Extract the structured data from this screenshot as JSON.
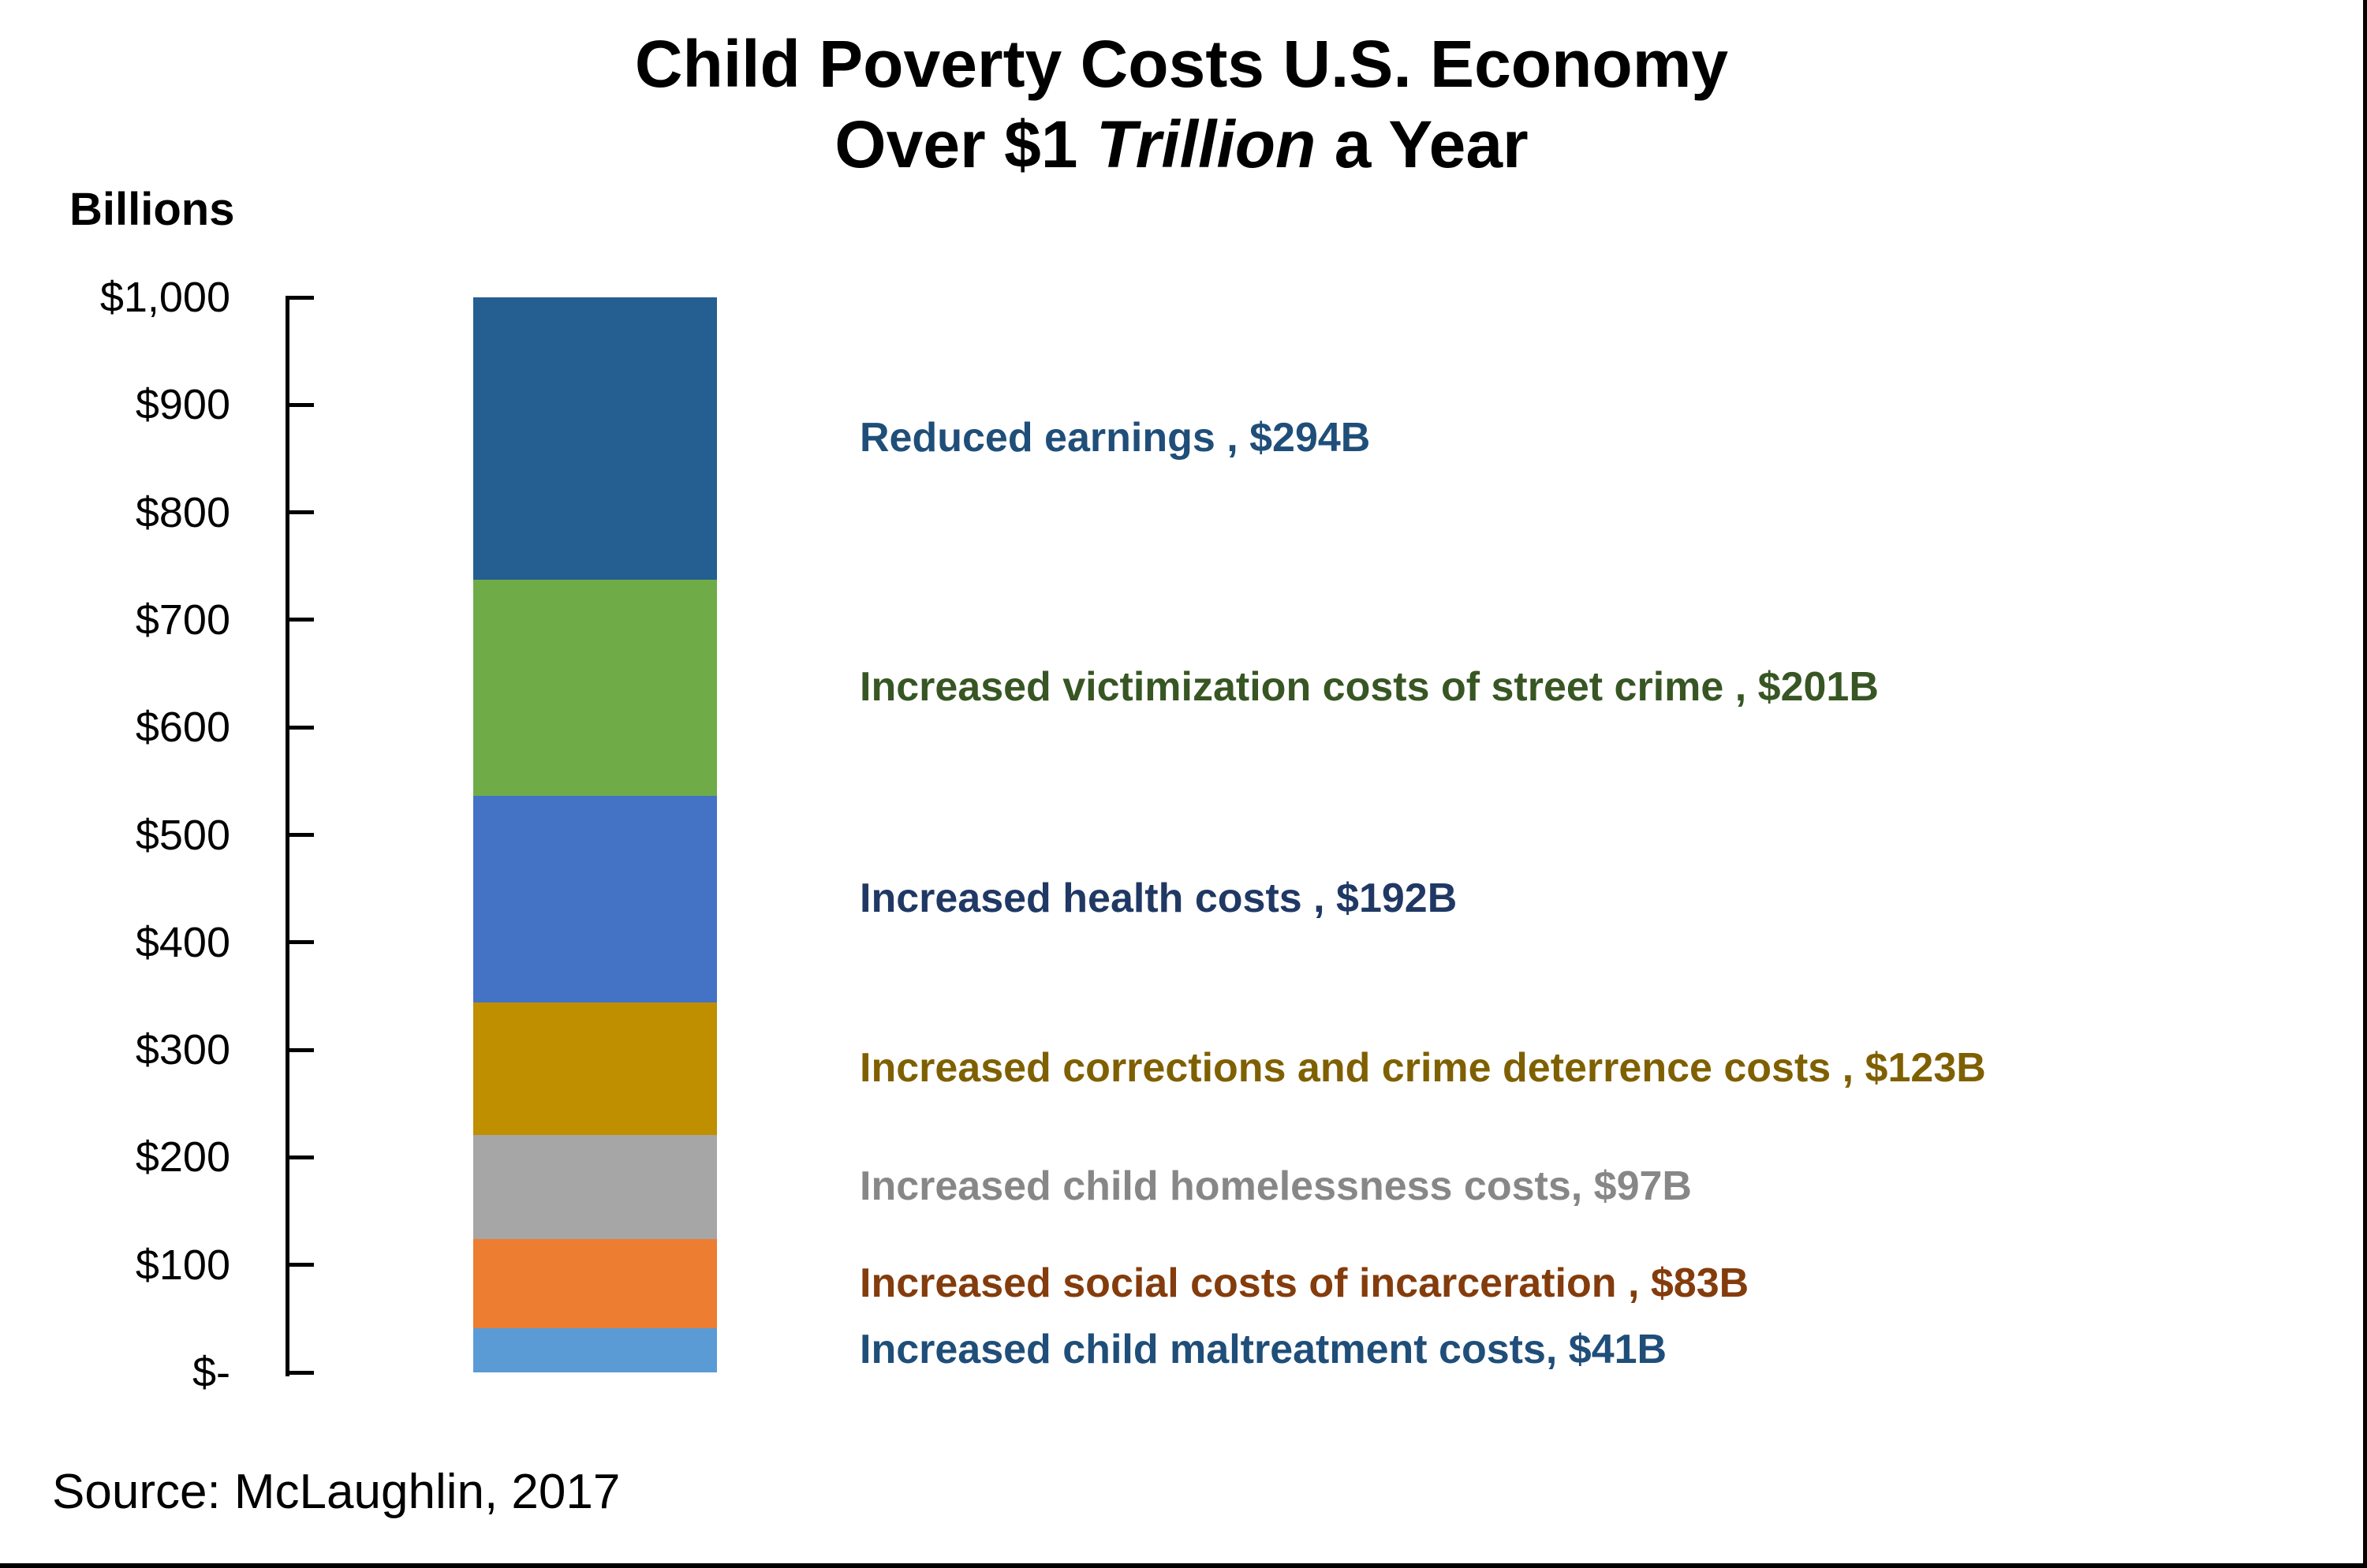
{
  "title": {
    "line1": "Child Poverty Costs U.S. Economy",
    "line2_pre": "Over $1 ",
    "line2_italic": "Trillion",
    "line2_post": " a Year"
  },
  "axis": {
    "unit_label": "Billions",
    "ticks": [
      "$1,000",
      "$900",
      "$800",
      "$700",
      "$600",
      "$500",
      "$400",
      "$300",
      "$200",
      "$100",
      "$-"
    ]
  },
  "chart_data": {
    "type": "bar",
    "subtype": "single-stacked-column",
    "title": "Child Poverty Costs U.S. Economy Over $1 Trillion a Year",
    "ylabel": "Billions",
    "ylim": [
      0,
      1000
    ],
    "total_billion": 1031,
    "grid": "off",
    "legend": "none",
    "segments_top_to_bottom": [
      {
        "name": "Reduced earnings",
        "value_billion": 294,
        "display_label": "Reduced earnings , $294B",
        "color": "#255E91",
        "label_color": "#1F4E79"
      },
      {
        "name": "Increased victimization costs of street crime",
        "value_billion": 201,
        "display_label": "Increased victimization costs of street crime , $201B",
        "color": "#6FAC47",
        "label_color": "#375623"
      },
      {
        "name": "Increased health costs",
        "value_billion": 192,
        "display_label": "Increased health costs , $192B",
        "color": "#4472C4",
        "label_color": "#203864"
      },
      {
        "name": "Increased corrections and crime deterrence costs",
        "value_billion": 123,
        "display_label": "Increased corrections and crime deterrence costs , $123B",
        "color": "#BF8F00",
        "label_color": "#7F6000"
      },
      {
        "name": "Increased child homelessness costs",
        "value_billion": 97,
        "display_label": "Increased child homelessness costs, $97B",
        "color": "#A6A6A6",
        "label_color": "#878787"
      },
      {
        "name": "Increased social costs of incarceration",
        "value_billion": 83,
        "display_label": "Increased social costs of incarceration , $83B",
        "color": "#ED7D31",
        "label_color": "#843C0C"
      },
      {
        "name": "Increased child maltreatment costs",
        "value_billion": 41,
        "display_label": "Increased child maltreatment costs, $41B",
        "color": "#5B9BD5",
        "label_color": "#1F4E79"
      }
    ]
  },
  "source": {
    "text": "Source: McLaughlin, 2017"
  }
}
